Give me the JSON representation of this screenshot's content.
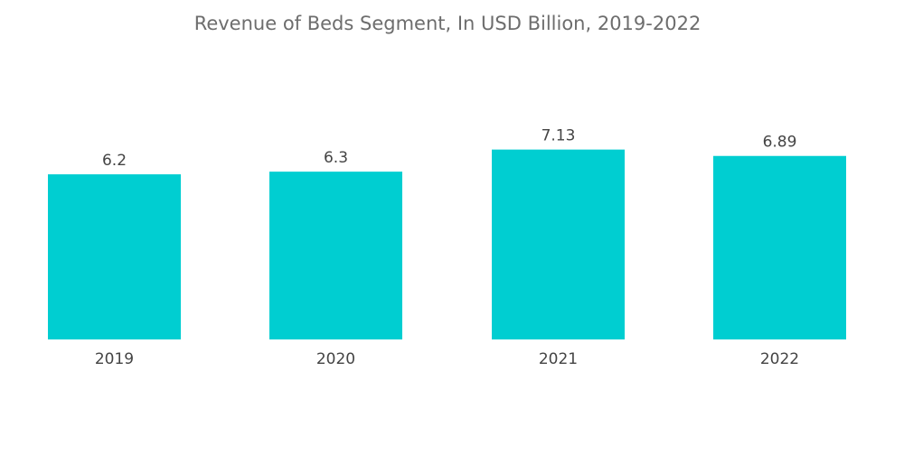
{
  "chart_data": {
    "type": "bar",
    "title": "Revenue of Beds Segment, In USD Billion, 2019-2022",
    "categories": [
      "2019",
      "2020",
      "2021",
      "2022"
    ],
    "values": [
      6.2,
      6.3,
      7.13,
      6.89
    ],
    "data_labels": [
      "6.2",
      "6.3",
      "7.13",
      "6.89"
    ],
    "xlabel": "",
    "ylabel": "",
    "ylim": [
      0,
      8
    ],
    "grid": false,
    "y_axis_visible": false,
    "bar_color": "#00CED1"
  }
}
